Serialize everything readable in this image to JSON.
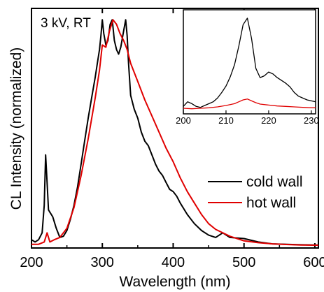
{
  "chart_data": {
    "type": "line",
    "title": "",
    "annotation": "3 kV, RT",
    "xlabel": "Wavelength (nm)",
    "ylabel": "CL Intensity (normalized)",
    "xlim": [
      200,
      605
    ],
    "ylim": [
      0,
      1.0
    ],
    "xticks": [
      200,
      300,
      400,
      500,
      600
    ],
    "xtick_labels": [
      "200",
      "300",
      "400",
      "500",
      "600"
    ],
    "yticks_shown": false,
    "legend": {
      "position": "right",
      "entries": [
        "cold wall",
        "hot wall"
      ]
    },
    "series": [
      {
        "name": "cold wall",
        "color": "#000000",
        "x": [
          200,
          205,
          210,
          215,
          218,
          220,
          222,
          224,
          226,
          230,
          235,
          240,
          245,
          250,
          255,
          260,
          265,
          270,
          275,
          280,
          285,
          290,
          293,
          296,
          298,
          300,
          302,
          305,
          308,
          311,
          314,
          317,
          320,
          323,
          326,
          330,
          333,
          335,
          337,
          340,
          345,
          350,
          355,
          360,
          365,
          370,
          375,
          380,
          385,
          390,
          395,
          400,
          405,
          410,
          420,
          430,
          440,
          450,
          460,
          470,
          480,
          500,
          520,
          540,
          560,
          580,
          600,
          605
        ],
        "y": [
          0.03,
          0.02,
          0.03,
          0.06,
          0.18,
          0.4,
          0.28,
          0.16,
          0.15,
          0.13,
          0.08,
          0.04,
          0.045,
          0.07,
          0.12,
          0.18,
          0.26,
          0.36,
          0.46,
          0.56,
          0.65,
          0.74,
          0.8,
          0.86,
          0.92,
          0.99,
          0.93,
          0.88,
          0.9,
          0.97,
          0.99,
          0.9,
          0.86,
          0.84,
          0.87,
          0.94,
          0.99,
          0.92,
          0.8,
          0.66,
          0.6,
          0.56,
          0.5,
          0.46,
          0.44,
          0.4,
          0.36,
          0.33,
          0.31,
          0.28,
          0.25,
          0.24,
          0.22,
          0.19,
          0.14,
          0.1,
          0.07,
          0.05,
          0.04,
          0.06,
          0.04,
          0.035,
          0.02,
          0.012,
          0.01,
          0.008,
          0.007,
          0.007
        ]
      },
      {
        "name": "hot wall",
        "color": "#e00000",
        "x": [
          200,
          210,
          218,
          222,
          226,
          232,
          240,
          250,
          260,
          270,
          280,
          290,
          296,
          300,
          305,
          310,
          315,
          320,
          325,
          330,
          335,
          340,
          350,
          360,
          370,
          380,
          390,
          400,
          410,
          420,
          430,
          440,
          450,
          460,
          480,
          500,
          520,
          540,
          560,
          580,
          600,
          605
        ],
        "y": [
          0.01,
          0.01,
          0.02,
          0.06,
          0.02,
          0.03,
          0.04,
          0.08,
          0.17,
          0.31,
          0.47,
          0.65,
          0.77,
          0.88,
          0.87,
          0.94,
          0.99,
          0.97,
          0.93,
          0.9,
          0.86,
          0.8,
          0.72,
          0.64,
          0.57,
          0.5,
          0.43,
          0.37,
          0.3,
          0.24,
          0.19,
          0.14,
          0.1,
          0.075,
          0.045,
          0.025,
          0.017,
          0.012,
          0.009,
          0.007,
          0.006,
          0.006
        ]
      }
    ],
    "inset": {
      "type": "line",
      "xlim": [
        200,
        231
      ],
      "xticks": [
        200,
        210,
        220,
        230
      ],
      "xtick_labels": [
        "200",
        "210",
        "220",
        "230"
      ],
      "series": [
        {
          "name": "cold wall",
          "color": "#000000",
          "x": [
            200,
            201,
            202,
            203,
            204,
            205,
            206,
            207,
            208,
            209,
            210,
            211,
            212,
            213,
            214,
            215,
            216,
            217,
            218,
            219,
            220,
            221,
            222,
            223,
            224,
            225,
            226,
            227,
            228,
            229,
            230,
            231
          ],
          "y": [
            0.05,
            0.1,
            0.08,
            0.05,
            0.04,
            0.06,
            0.08,
            0.1,
            0.14,
            0.2,
            0.27,
            0.37,
            0.5,
            0.7,
            0.93,
            1.0,
            0.78,
            0.46,
            0.36,
            0.38,
            0.42,
            0.4,
            0.36,
            0.33,
            0.3,
            0.26,
            0.2,
            0.16,
            0.14,
            0.12,
            0.11,
            0.1
          ]
        },
        {
          "name": "hot wall",
          "color": "#e00000",
          "x": [
            200,
            202,
            204,
            206,
            208,
            210,
            212,
            213,
            214,
            215,
            216,
            217,
            218,
            220,
            222,
            224,
            226,
            228,
            230,
            231
          ],
          "y": [
            0.03,
            0.025,
            0.03,
            0.035,
            0.045,
            0.06,
            0.08,
            0.1,
            0.12,
            0.13,
            0.11,
            0.09,
            0.075,
            0.065,
            0.055,
            0.05,
            0.045,
            0.04,
            0.035,
            0.035
          ]
        }
      ]
    }
  }
}
